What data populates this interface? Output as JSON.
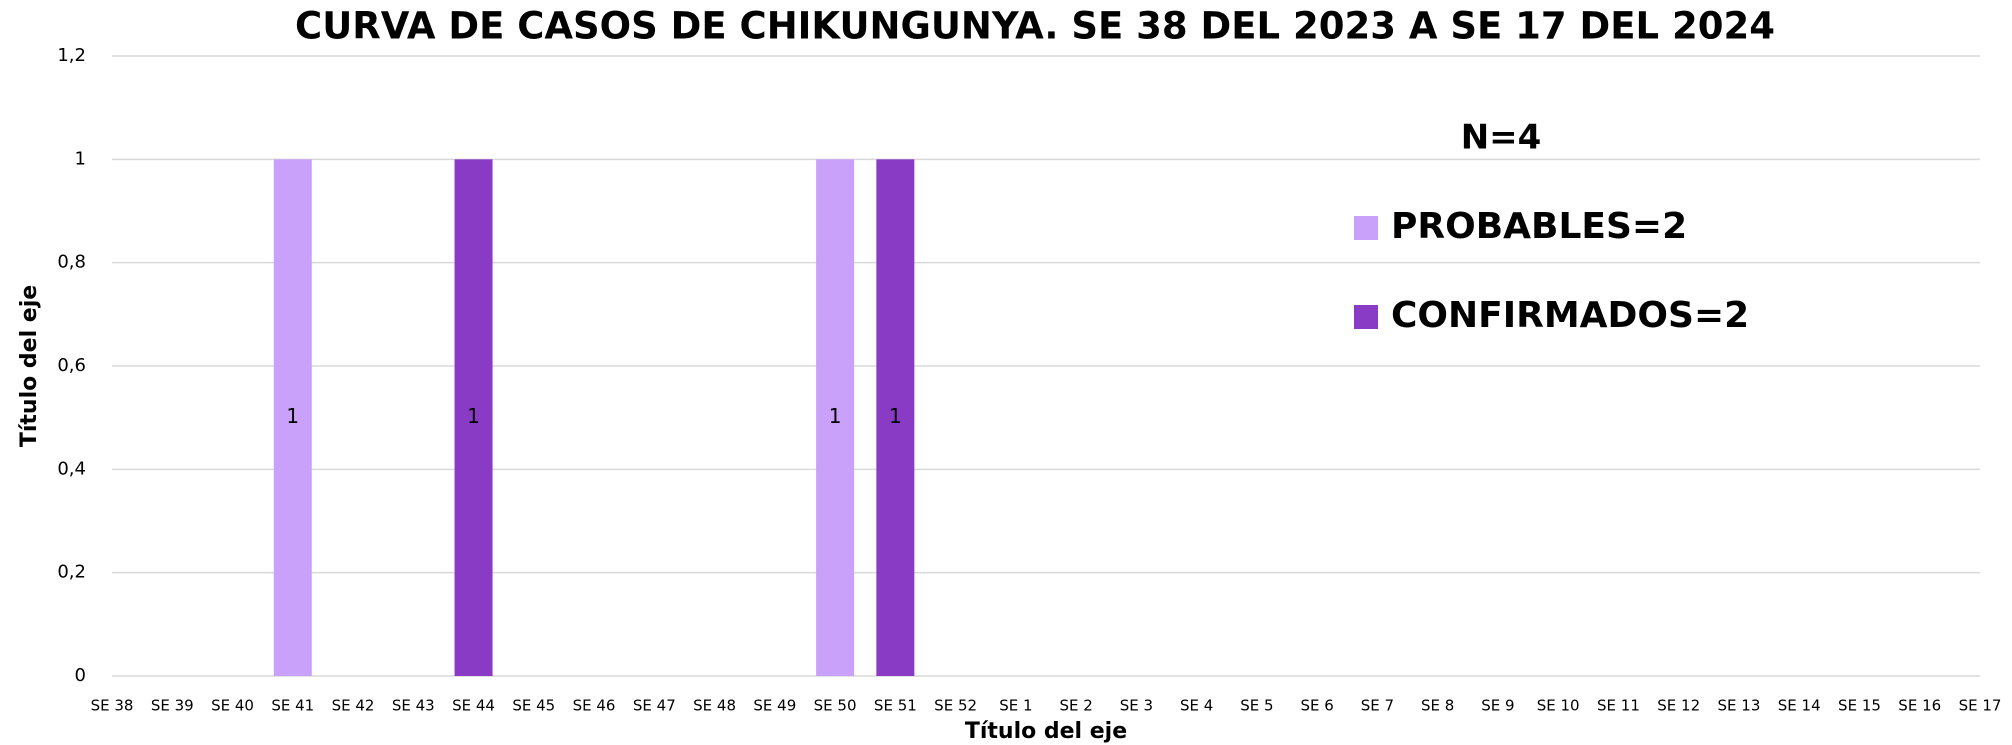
{
  "chart_data": {
    "type": "bar",
    "stacked": true,
    "title": "CURVA DE CASOS DE CHIKUNGUNYA.  SE 38 DEL 2023 A SE 17 DEL 2024",
    "annotation": "N=4",
    "x_label": "Título del eje",
    "y_label": "Título del eje",
    "categories": [
      "SE 38",
      "SE 39",
      "SE 40",
      "SE 41",
      "SE 42",
      "SE 43",
      "SE 44",
      "SE 45",
      "SE 46",
      "SE 47",
      "SE 48",
      "SE 49",
      "SE 50",
      "SE 51",
      "SE 52",
      "SE 1",
      "SE 2",
      "SE 3",
      "SE 4",
      "SE 5",
      "SE 6",
      "SE 7",
      "SE 8",
      "SE 9",
      "SE 10",
      "SE 11",
      "SE 12",
      "SE 13",
      "SE 14",
      "SE 15",
      "SE 16",
      "SE 17"
    ],
    "series": [
      {
        "name": "PROBABLES=2",
        "color": "#c9a0fa",
        "values": [
          null,
          null,
          null,
          1,
          null,
          null,
          null,
          null,
          null,
          null,
          null,
          null,
          1,
          null,
          null,
          null,
          null,
          null,
          null,
          null,
          null,
          null,
          null,
          null,
          null,
          null,
          null,
          null,
          null,
          null,
          null,
          null
        ]
      },
      {
        "name": "CONFIRMADOS=2",
        "color": "#8a3bc6",
        "values": [
          null,
          null,
          null,
          null,
          null,
          null,
          1,
          null,
          null,
          null,
          null,
          null,
          null,
          1,
          null,
          null,
          null,
          null,
          null,
          null,
          null,
          null,
          null,
          null,
          null,
          null,
          null,
          null,
          null,
          null,
          null,
          null
        ]
      }
    ],
    "ylim": [
      0,
      1.2
    ],
    "yticks": [
      0,
      {
        "value": 0.2,
        "label": "0,2"
      },
      {
        "value": 0.4,
        "label": "0,4"
      },
      {
        "value": 0.6,
        "label": "0,6"
      },
      {
        "value": 0.8,
        "label": "0,8"
      },
      1,
      {
        "value": 1.2,
        "label": "1,2"
      }
    ],
    "grid": true
  }
}
